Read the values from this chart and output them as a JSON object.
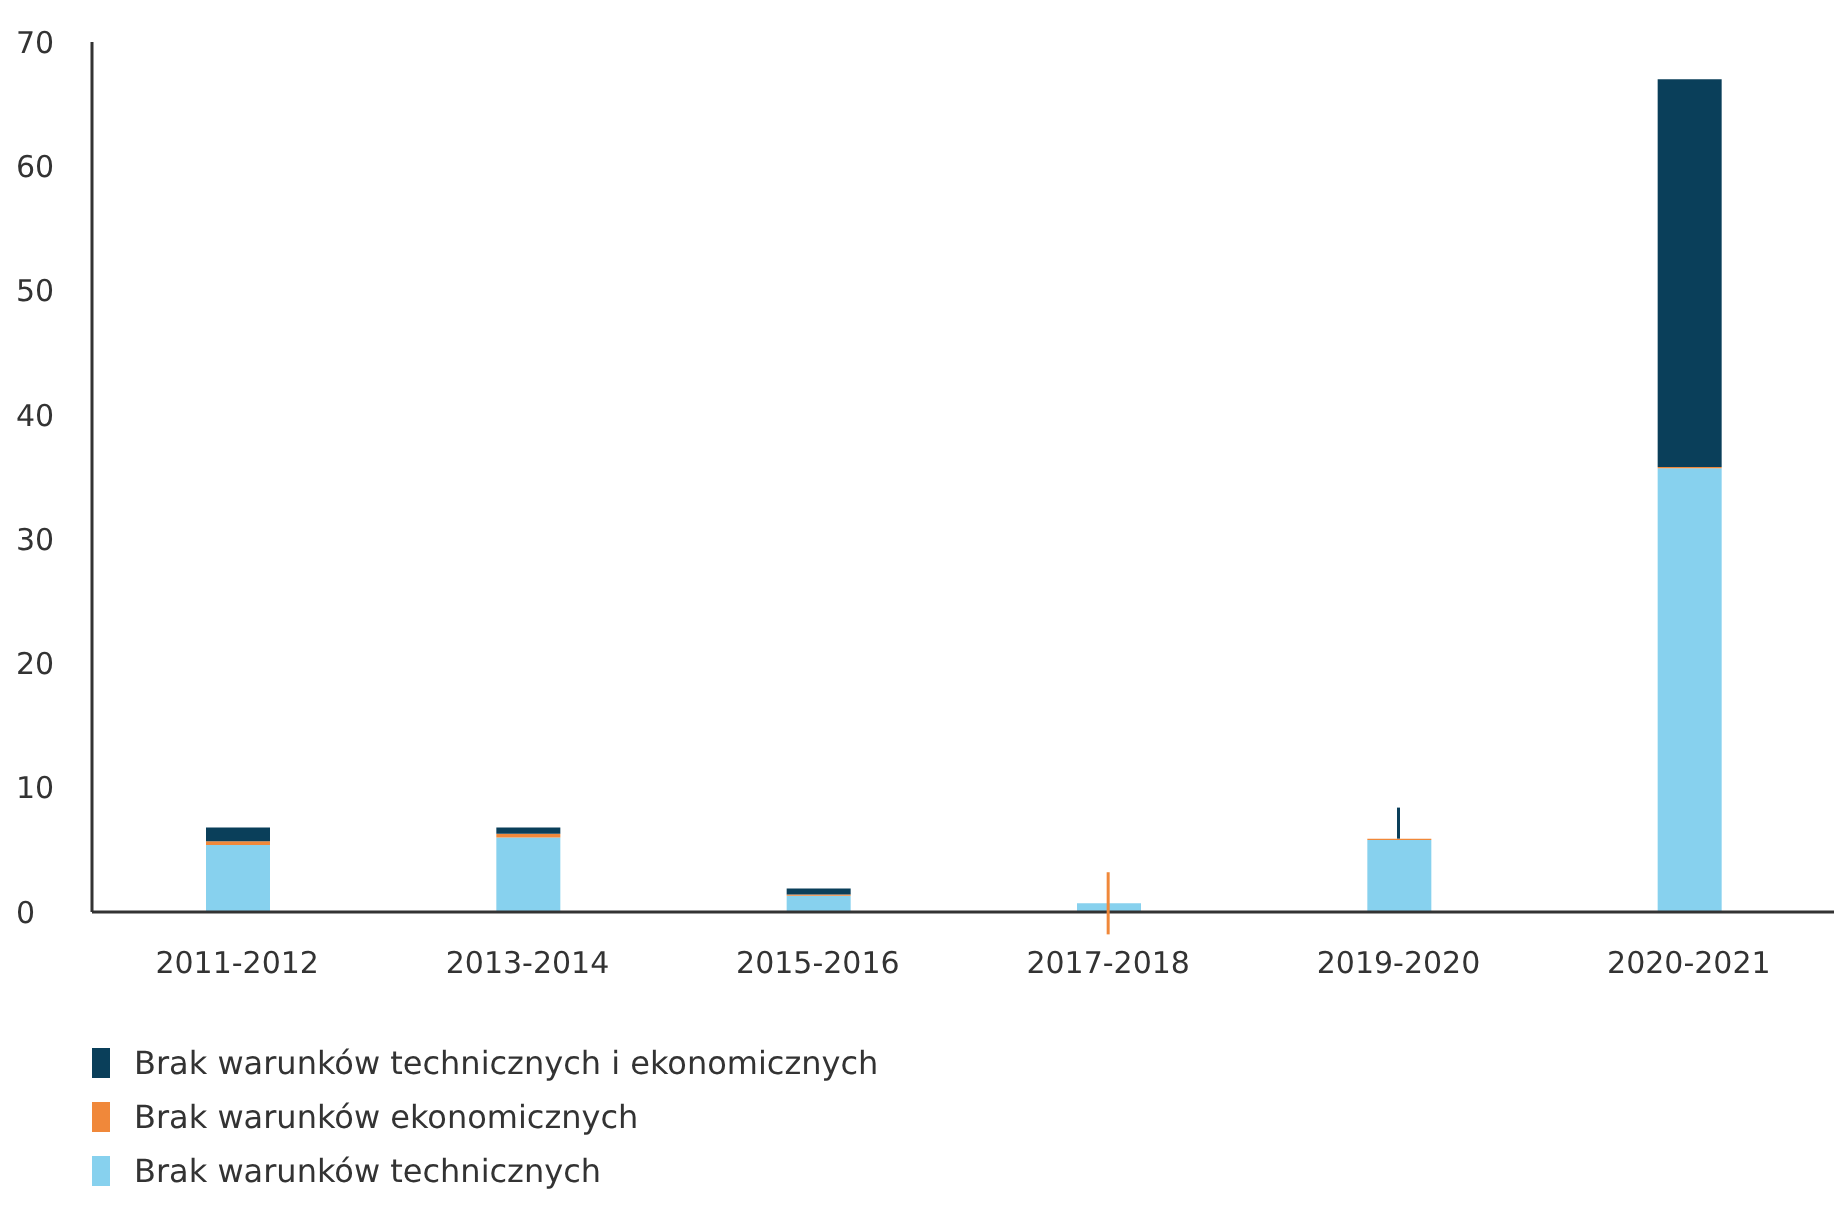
{
  "chart_data": {
    "type": "bar",
    "stacked": true,
    "categories": [
      "2011-2012",
      "2013-2014",
      "2015-2016",
      "2017-2018",
      "2019-2020",
      "2020-2021"
    ],
    "series": [
      {
        "name": "Brak warunków technicznych",
        "color": "#87d1ee",
        "values": [
          5.4,
          6.0,
          1.3,
          0.7,
          5.8,
          35.7
        ]
      },
      {
        "name": "Brak warunków ekonomicznych",
        "color": "#f0883a",
        "values": [
          0.3,
          0.3,
          0.1,
          0,
          0.1,
          0.1
        ],
        "errors": [
          null,
          null,
          null,
          2.5,
          null,
          null
        ]
      },
      {
        "name": "Brak warunków technicznych i ekonomicznych",
        "color": "#0a3f5a",
        "values": [
          1.1,
          0.5,
          0.5,
          0,
          0,
          31.2
        ],
        "errors": [
          null,
          null,
          null,
          null,
          [
            5.9,
            8.4
          ],
          null
        ]
      }
    ],
    "ylim": [
      0,
      70
    ],
    "yticks": [
      0,
      10,
      20,
      30,
      40,
      50,
      60,
      70
    ],
    "grid": false,
    "legend": "bottom"
  }
}
